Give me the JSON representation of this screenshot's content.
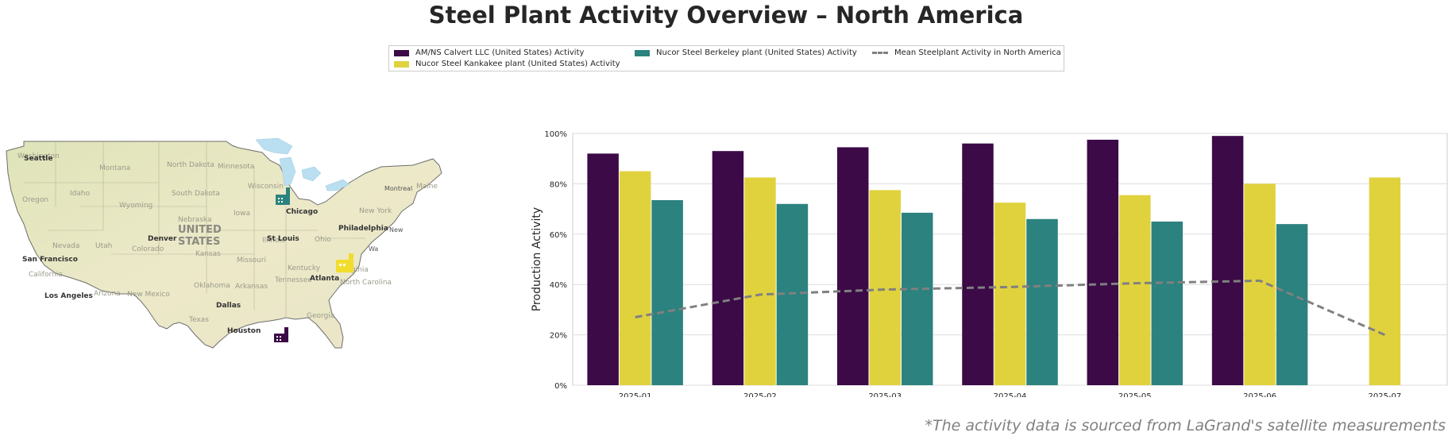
{
  "title": "Steel Plant Activity Overview – North America",
  "footnote": "*The activity data is sourced from LaGrand's satellite measurements",
  "legend": {
    "items": [
      {
        "label": "AM/NS Calvert LLC (United States) Activity",
        "color": "#3b0a47"
      },
      {
        "label": "Nucor Steel Kankakee plant (United States) Activity",
        "color": "#e0d23d"
      },
      {
        "label": "Nucor Steel Berkeley plant (United States) Activity",
        "color": "#2c827e"
      },
      {
        "label": "Mean Steelplant Activity in North America",
        "color": "#808080"
      }
    ]
  },
  "map": {
    "country_label_1": "UNITED",
    "country_label_2": "STATES",
    "cities": [
      "Seattle",
      "San Francisco",
      "Los Angeles",
      "Denver",
      "Dallas",
      "Houston",
      "Chicago",
      "St Louis",
      "Atlanta",
      "Philadelphia"
    ],
    "states": [
      "Washington",
      "Oregon",
      "California",
      "Nevada",
      "Idaho",
      "Montana",
      "Wyoming",
      "Utah",
      "Colorado",
      "Arizona",
      "New Mexico",
      "North Dakota",
      "South Dakota",
      "Nebraska",
      "Kansas",
      "Oklahoma",
      "Texas",
      "Minnesota",
      "Iowa",
      "Missouri",
      "Arkansas",
      "Wisconsin",
      "Illinois",
      "Ohio",
      "Kentucky",
      "Tennessee",
      "Georgia",
      "Virginia",
      "North Carolina",
      "New York",
      "Maine",
      "Montreal",
      "New",
      "Wa"
    ],
    "markers": [
      {
        "name": "AM/NS Calvert LLC",
        "color": "#3b0a47"
      },
      {
        "name": "Nucor Steel Kankakee plant",
        "color": "#2c827e"
      },
      {
        "name": "Nucor Steel Berkeley plant",
        "color": "#f2dc2e"
      }
    ]
  },
  "chart_data": {
    "type": "bar",
    "categories": [
      "2025-01",
      "2025-02",
      "2025-03",
      "2025-04",
      "2025-05",
      "2025-06",
      "2025-07"
    ],
    "series": [
      {
        "name": "AM/NS Calvert LLC (United States) Activity",
        "color": "#3b0a47",
        "values": [
          92,
          93,
          94.5,
          96,
          97.5,
          99,
          null
        ]
      },
      {
        "name": "Nucor Steel Kankakee plant (United States) Activity",
        "color": "#e0d23d",
        "values": [
          85,
          82.5,
          77.5,
          72.5,
          75.5,
          80,
          82.5
        ]
      },
      {
        "name": "Nucor Steel Berkeley plant (United States) Activity",
        "color": "#2c827e",
        "values": [
          73.5,
          72,
          68.5,
          66,
          65,
          64,
          null
        ]
      }
    ],
    "line": {
      "name": "Mean Steelplant Activity in North America",
      "color": "#808080",
      "values": [
        27,
        36,
        38,
        39,
        40.5,
        41.5,
        20
      ]
    },
    "ylabel": "Production Activity",
    "ylim": [
      0,
      100
    ],
    "yticks": [
      "0%",
      "20%",
      "40%",
      "60%",
      "80%",
      "100%"
    ],
    "grid": true
  }
}
